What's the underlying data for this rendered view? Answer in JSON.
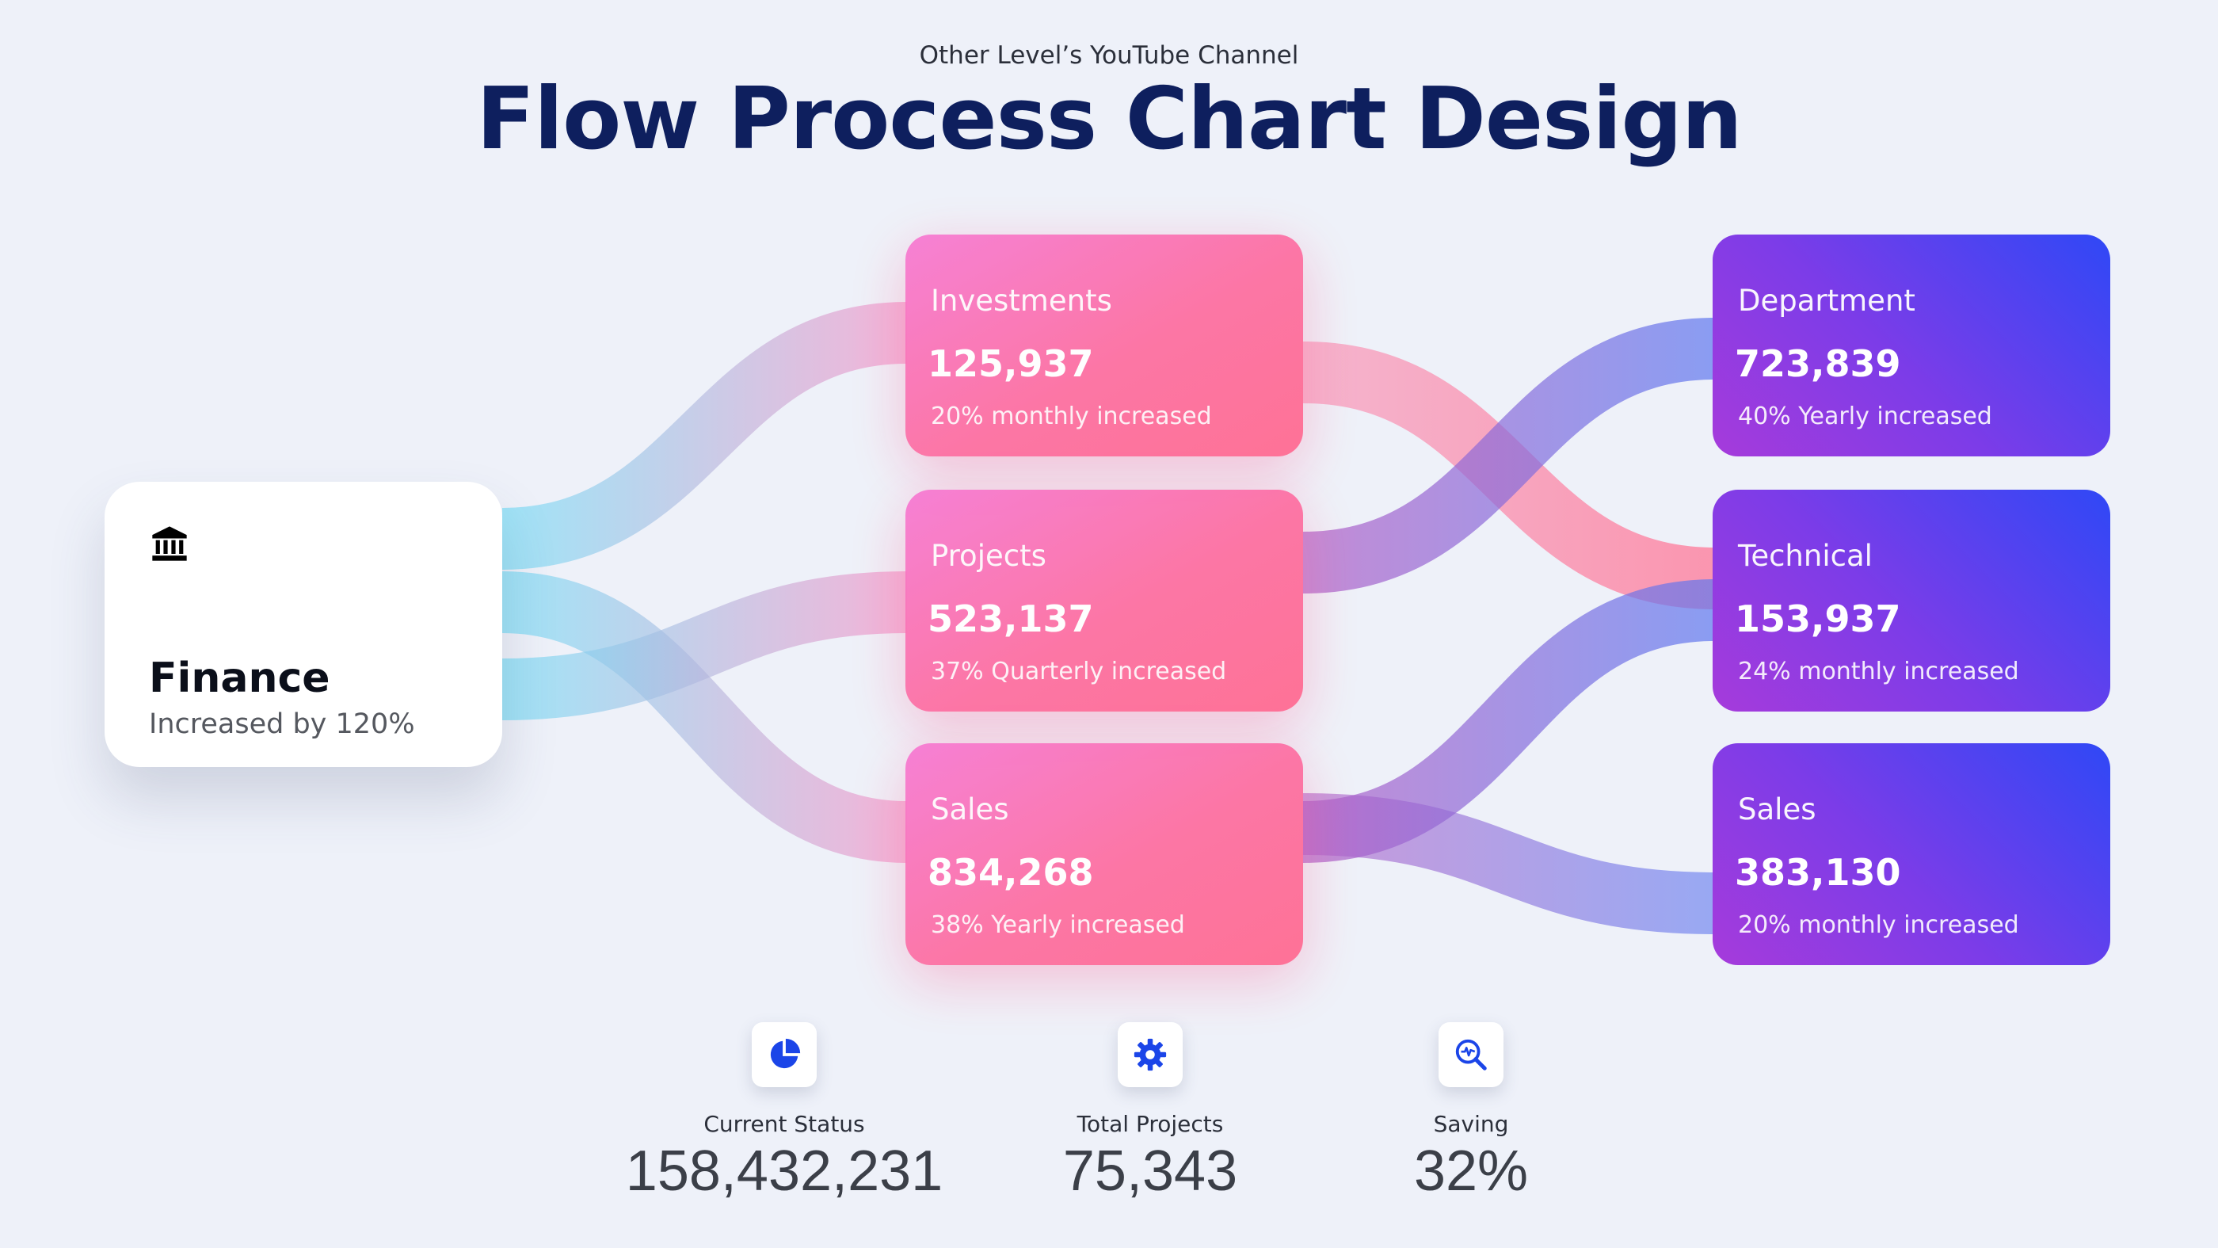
{
  "header": {
    "subtitle": "Other Level’s YouTube Channel",
    "title": "Flow Process Chart Design"
  },
  "source": {
    "icon": "bank-icon",
    "name": "Finance",
    "note": "Increased by 120%"
  },
  "middle": [
    {
      "label": "Investments",
      "value": "125,937",
      "note": "20% monthly increased"
    },
    {
      "label": "Projects",
      "value": "523,137",
      "note": "37% Quarterly increased"
    },
    {
      "label": "Sales",
      "value": "834,268",
      "note": "38% Yearly increased"
    }
  ],
  "right": [
    {
      "label": "Department",
      "value": "723,839",
      "note": "40% Yearly increased"
    },
    {
      "label": "Technical",
      "value": "153,937",
      "note": "24% monthly increased"
    },
    {
      "label": "Sales",
      "value": "383,130",
      "note": "20% monthly increased"
    }
  ],
  "stats": [
    {
      "icon": "pie-chart-icon",
      "label": "Current Status",
      "value": "158,432,231"
    },
    {
      "icon": "gear-icon",
      "label": "Total Projects",
      "value": "75,343"
    },
    {
      "icon": "search-analytics-icon",
      "label": "Saving",
      "value": "32%"
    }
  ],
  "colors": {
    "title": "#0e1f5e",
    "flow_cyan": "#6fdcf6",
    "flow_pink": "#f98fb5",
    "flow_blue": "#6b6ff0",
    "icon_blue": "#1b45e8"
  }
}
